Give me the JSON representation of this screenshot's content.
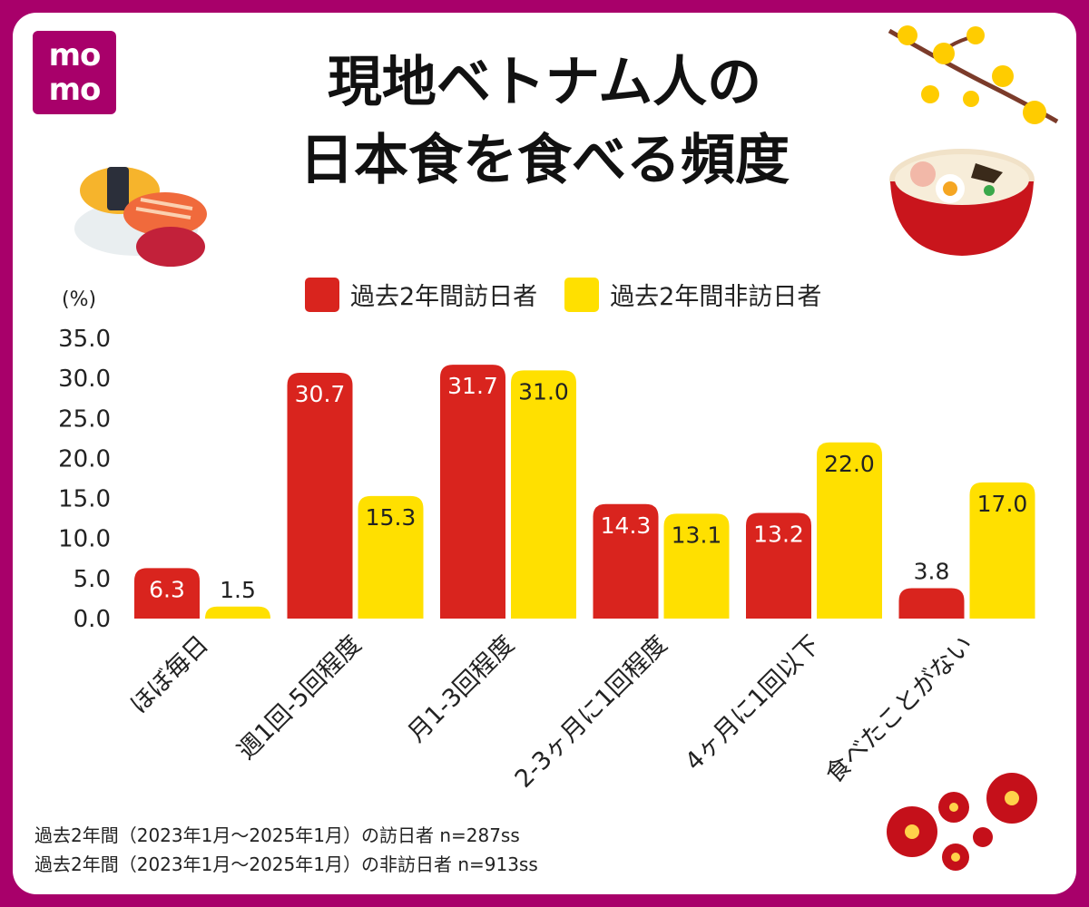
{
  "logo": {
    "line1": "mo",
    "line2": "mo"
  },
  "title": {
    "line1": "現地ベトナム人の",
    "line2": "日本食を食べる頻度"
  },
  "legend": {
    "visitor": "過去2年間訪日者",
    "nonvisitor": "過去2年間非訪日者"
  },
  "unit": "(%)",
  "notes": {
    "n1": "過去2年間（2023年1月～2025年1月）の訪日者 n=287ss",
    "n2": "過去2年間（2023年1月～2025年1月）の非訪日者 n=913ss"
  },
  "colors": {
    "brand": "#a8006a",
    "visitor": "#d9241e",
    "nonvisitor": "#ffe000"
  },
  "icons": [
    "sushi-icon",
    "ramen-icon",
    "plum-blossom-icon",
    "apricot-blossom-icon"
  ],
  "chart_data": {
    "type": "bar",
    "categories": [
      "ほぼ毎日",
      "週1回-5回程度",
      "月1-3回程度",
      "2-3ヶ月に1回程度",
      "4ヶ月に1回以下",
      "食べたことがない"
    ],
    "series": [
      {
        "name": "過去2年間訪日者",
        "values": [
          6.3,
          30.7,
          31.7,
          14.3,
          13.2,
          3.8
        ]
      },
      {
        "name": "過去2年間非訪日者",
        "values": [
          1.5,
          15.3,
          31.0,
          13.1,
          22.0,
          17.0
        ]
      }
    ],
    "yticks": [
      "0.0",
      "5.0",
      "10.0",
      "15.0",
      "20.0",
      "25.0",
      "30.0",
      "35.0"
    ],
    "ylim": [
      0,
      35
    ],
    "ylabel": "(%)",
    "grid": false,
    "legend_position": "top"
  }
}
